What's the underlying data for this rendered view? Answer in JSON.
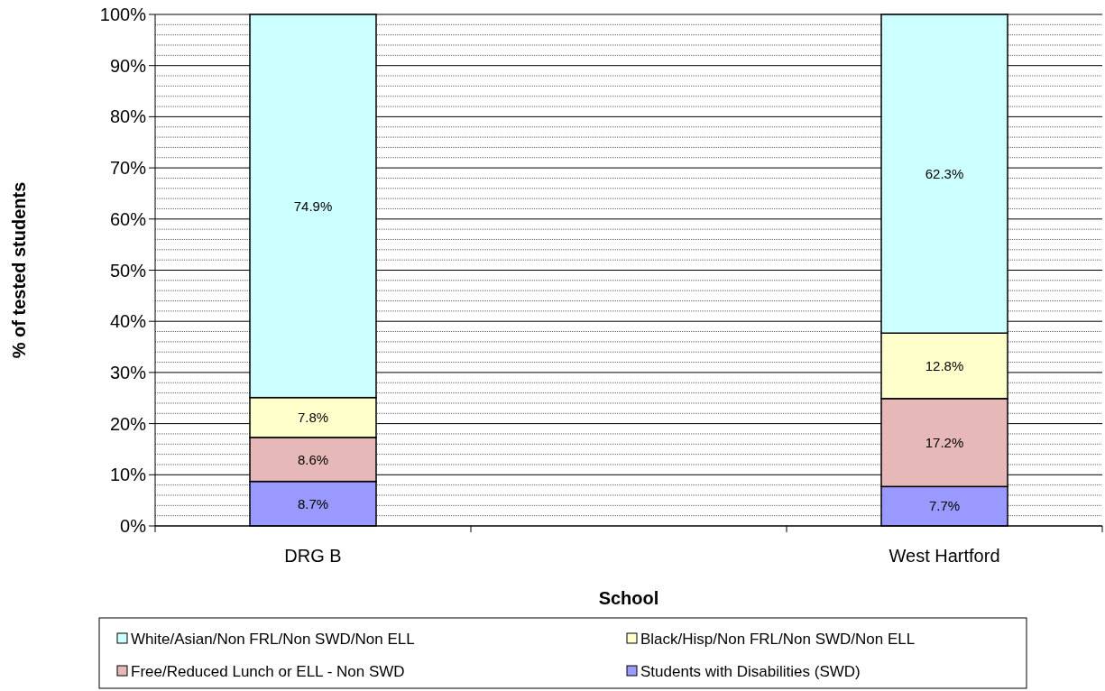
{
  "chart_data": {
    "type": "bar",
    "stacked": true,
    "xlabel": "School",
    "ylabel": "% of tested students",
    "categories": [
      "DRG B",
      null,
      "West Hartford"
    ],
    "series": [
      {
        "name": "Students with Disabilities (SWD)",
        "color": "#9999ff",
        "values": [
          8.7,
          null,
          7.7
        ],
        "value_labels": [
          "8.7%",
          null,
          "7.7%"
        ]
      },
      {
        "name": "Free/Reduced Lunch or ELL - Non SWD",
        "color": "#e6b8b7",
        "values": [
          8.6,
          null,
          17.2
        ],
        "value_labels": [
          "8.6%",
          null,
          "17.2%"
        ]
      },
      {
        "name": "Black/Hisp/Non FRL/Non SWD/Non ELL",
        "color": "#ffffcc",
        "values": [
          7.8,
          null,
          12.8
        ],
        "value_labels": [
          "7.8%",
          null,
          "12.8%"
        ]
      },
      {
        "name": "White/Asian/Non FRL/Non SWD/Non ELL",
        "color": "#ccffff",
        "values": [
          74.9,
          null,
          62.3
        ],
        "value_labels": [
          "74.9%",
          null,
          "62.3%"
        ]
      }
    ],
    "ylim": [
      0,
      100
    ],
    "yticks": [
      {
        "value": 0,
        "label": "0%"
      },
      {
        "value": 2,
        "label": null
      },
      {
        "value": 4,
        "label": null
      },
      {
        "value": 6,
        "label": null
      },
      {
        "value": 8,
        "label": null
      },
      {
        "value": 10,
        "label": "10%"
      },
      {
        "value": 12,
        "label": null
      },
      {
        "value": 14,
        "label": null
      },
      {
        "value": 16,
        "label": null
      },
      {
        "value": 18,
        "label": null
      },
      {
        "value": 20,
        "label": "20%"
      },
      {
        "value": 22,
        "label": null
      },
      {
        "value": 24,
        "label": null
      },
      {
        "value": 26,
        "label": null
      },
      {
        "value": 28,
        "label": null
      },
      {
        "value": 30,
        "label": "30%"
      },
      {
        "value": 32,
        "label": null
      },
      {
        "value": 34,
        "label": null
      },
      {
        "value": 36,
        "label": null
      },
      {
        "value": 38,
        "label": null
      },
      {
        "value": 40,
        "label": "40%"
      },
      {
        "value": 42,
        "label": null
      },
      {
        "value": 44,
        "label": null
      },
      {
        "value": 46,
        "label": null
      },
      {
        "value": 48,
        "label": null
      },
      {
        "value": 50,
        "label": "50%"
      },
      {
        "value": 52,
        "label": null
      },
      {
        "value": 54,
        "label": null
      },
      {
        "value": 56,
        "label": null
      },
      {
        "value": 58,
        "label": null
      },
      {
        "value": 60,
        "label": "60%"
      },
      {
        "value": 62,
        "label": null
      },
      {
        "value": 64,
        "label": null
      },
      {
        "value": 66,
        "label": null
      },
      {
        "value": 68,
        "label": null
      },
      {
        "value": 70,
        "label": "70%"
      },
      {
        "value": 72,
        "label": null
      },
      {
        "value": 74,
        "label": null
      },
      {
        "value": 76,
        "label": null
      },
      {
        "value": 78,
        "label": null
      },
      {
        "value": 80,
        "label": "80%"
      },
      {
        "value": 82,
        "label": null
      },
      {
        "value": 84,
        "label": null
      },
      {
        "value": 86,
        "label": null
      },
      {
        "value": 88,
        "label": null
      },
      {
        "value": 90,
        "label": "90%"
      },
      {
        "value": 92,
        "label": null
      },
      {
        "value": 94,
        "label": null
      },
      {
        "value": 96,
        "label": null
      },
      {
        "value": 98,
        "label": null
      },
      {
        "value": 100,
        "label": "100%"
      }
    ],
    "grid": "y",
    "legend": "bottom"
  }
}
